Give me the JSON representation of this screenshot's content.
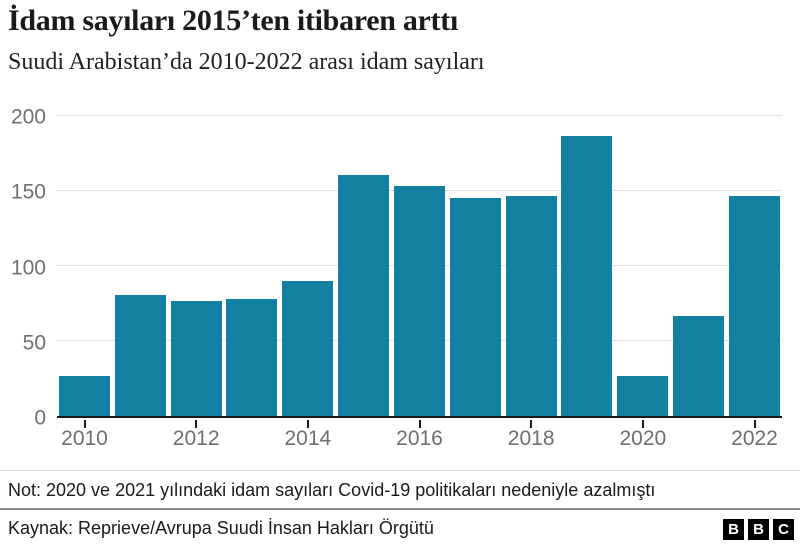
{
  "header": {
    "title": "İdam sayıları 2015’ten itibaren arttı",
    "subtitle": "Suudi Arabistan’da 2010-2022 arası idam sayıları"
  },
  "chart_data": {
    "type": "bar",
    "categories": [
      2010,
      2011,
      2012,
      2013,
      2014,
      2015,
      2016,
      2017,
      2018,
      2019,
      2020,
      2021,
      2022
    ],
    "values": [
      27,
      81,
      77,
      78,
      90,
      161,
      154,
      146,
      147,
      187,
      27,
      67,
      147
    ],
    "title": "İdam sayıları 2015’ten itibaren arttı",
    "subtitle": "Suudi Arabistan’da 2010-2022 arası idam sayıları",
    "xlabel": "",
    "ylabel": "",
    "ylim": [
      0,
      200
    ],
    "y_ticks": [
      0,
      50,
      100,
      150,
      200
    ],
    "x_tick_labels": [
      "2010",
      "2012",
      "2014",
      "2016",
      "2018",
      "2020",
      "2022"
    ],
    "grid": "horizontal",
    "legend": "none",
    "bar_color": "#1380A1"
  },
  "colors": {
    "bar": "#1380A1",
    "gridline": "#e1e1e1",
    "axis_line": "#1a1a1a",
    "axis_label": "#6f6f6f",
    "text": "#1a1a1a"
  },
  "footer": {
    "note": "Not: 2020 ve 2021 yılındaki idam sayıları Covid-19 politikaları nedeniyle azalmıştı",
    "source": "Kaynak: Reprieve/Avrupa Suudi İnsan Hakları Örgütü",
    "logo_blocks": [
      "B",
      "B",
      "C"
    ]
  }
}
